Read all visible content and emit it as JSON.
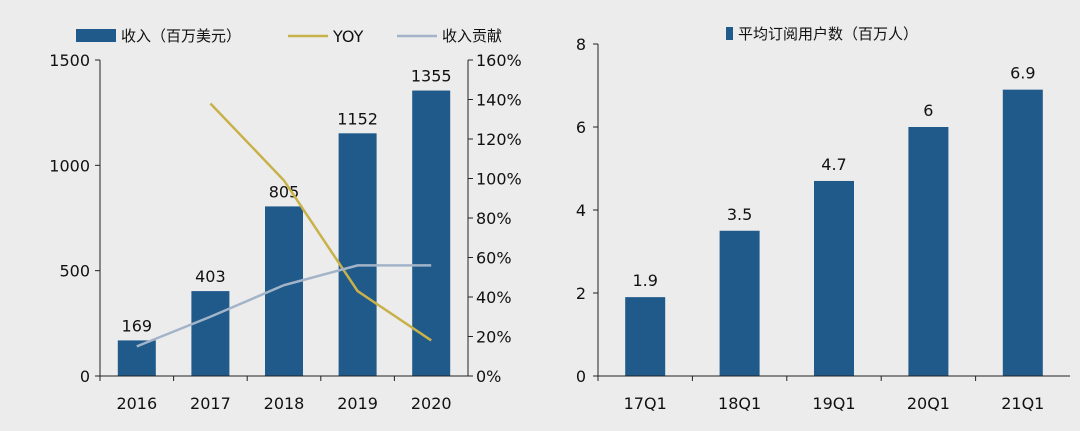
{
  "colors": {
    "bar": "#1f5a8a",
    "yoy": "#c9b14a",
    "contrib": "#a3b4c9",
    "axis": "#222222",
    "background": "#ececec"
  },
  "chart_data": [
    {
      "type": "bar",
      "categories": [
        "2016",
        "2017",
        "2018",
        "2019",
        "2020"
      ],
      "series": [
        {
          "name": "收入（百万美元）",
          "type": "bar",
          "axis": "left",
          "values": [
            169,
            403,
            805,
            1152,
            1355
          ],
          "labels": [
            "169",
            "403",
            "805",
            "1152",
            "1355"
          ]
        },
        {
          "name": "YOY",
          "type": "line",
          "axis": "right",
          "values": [
            null,
            1.38,
            0.99,
            0.43,
            0.18
          ]
        },
        {
          "name": "收入贡献",
          "type": "line",
          "axis": "right",
          "values": [
            0.15,
            0.3,
            0.46,
            0.56,
            0.56
          ]
        }
      ],
      "ylim_left": [
        0,
        1500
      ],
      "yticks_left": [
        0,
        500,
        1000,
        1500
      ],
      "ylim_right": [
        0,
        1.6
      ],
      "yticks_right": [
        "0%",
        "20%",
        "40%",
        "60%",
        "80%",
        "100%",
        "120%",
        "140%",
        "160%"
      ],
      "legend_position": "top",
      "grid": false
    },
    {
      "type": "bar",
      "categories": [
        "17Q1",
        "18Q1",
        "19Q1",
        "20Q1",
        "21Q1"
      ],
      "series": [
        {
          "name": "平均订阅用户数（百万人）",
          "values": [
            1.9,
            3.5,
            4.7,
            6,
            6.9
          ],
          "labels": [
            "1.9",
            "3.5",
            "4.7",
            "6",
            "6.9"
          ]
        }
      ],
      "ylim": [
        0,
        8
      ],
      "yticks": [
        0,
        2,
        4,
        6,
        8
      ],
      "legend_position": "top",
      "grid": false
    }
  ]
}
